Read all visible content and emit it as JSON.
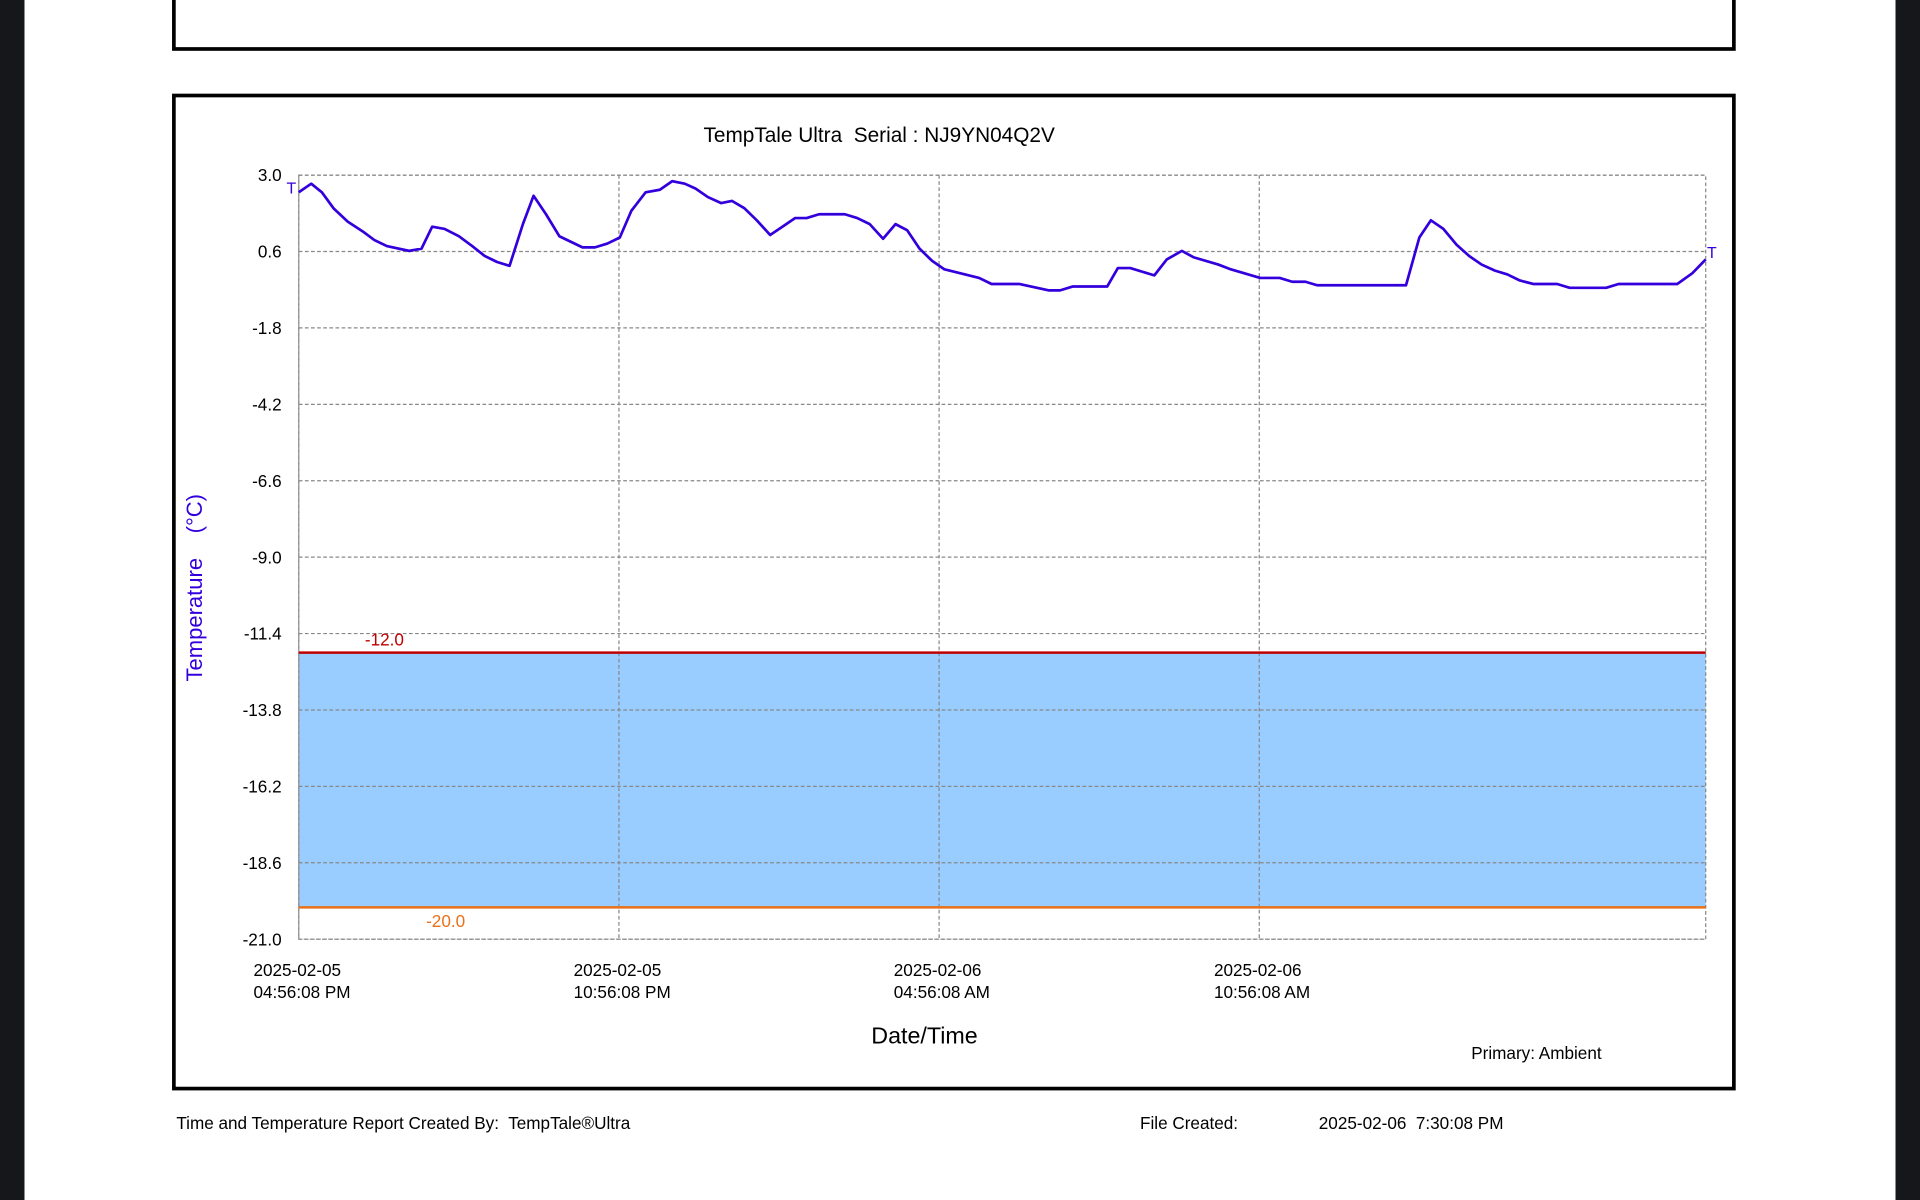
{
  "chart_data": {
    "type": "line",
    "title": "TempTale Ultra  Serial : NJ9YN04Q2V",
    "y_label": "Temperature    (°C)",
    "x_label": "Date/Time",
    "x": [
      "2025-02-05T16:56:08",
      "2025-02-05T17:10:08",
      "2025-02-05T17:22:08",
      "2025-02-05T17:35:08",
      "2025-02-05T17:51:08",
      "2025-02-05T18:08:08",
      "2025-02-05T18:21:08",
      "2025-02-05T18:35:08",
      "2025-02-05T19:00:08",
      "2025-02-05T19:14:08",
      "2025-02-05T19:26:08",
      "2025-02-05T19:40:08",
      "2025-02-05T19:56:08",
      "2025-02-05T20:11:08",
      "2025-02-05T20:25:08",
      "2025-02-05T20:39:08",
      "2025-02-05T20:53:08",
      "2025-02-05T21:08:08",
      "2025-02-05T21:20:08",
      "2025-02-05T21:34:08",
      "2025-02-05T21:49:08",
      "2025-02-05T22:15:08",
      "2025-02-05T22:29:08",
      "2025-02-05T22:43:08",
      "2025-02-05T22:57:08",
      "2025-02-05T23:10:08",
      "2025-02-05T23:26:08",
      "2025-02-05T23:42:08",
      "2025-02-05T23:56:08",
      "2025-02-06T00:10:08",
      "2025-02-06T00:22:08",
      "2025-02-06T00:36:08",
      "2025-02-06T00:51:08",
      "2025-02-06T01:03:08",
      "2025-02-06T01:17:08",
      "2025-02-06T01:31:08",
      "2025-02-06T01:46:08",
      "2025-02-06T02:00:08",
      "2025-02-06T02:14:08",
      "2025-02-06T02:27:08",
      "2025-02-06T02:41:08",
      "2025-02-06T03:10:08",
      "2025-02-06T03:24:08",
      "2025-02-06T03:38:08",
      "2025-02-06T03:53:08",
      "2025-02-06T04:07:08",
      "2025-02-06T04:20:08",
      "2025-02-06T04:34:08",
      "2025-02-06T04:48:08",
      "2025-02-06T05:02:08",
      "2025-02-06T05:41:08",
      "2025-02-06T05:55:08",
      "2025-02-06T06:26:08",
      "2025-02-06T06:59:08",
      "2025-02-06T07:12:08",
      "2025-02-06T07:26:08",
      "2025-02-06T08:05:08",
      "2025-02-06T08:17:08",
      "2025-02-06T08:31:08",
      "2025-02-06T08:58:08",
      "2025-02-06T09:12:08",
      "2025-02-06T09:29:08",
      "2025-02-06T09:42:08",
      "2025-02-06T10:10:08",
      "2025-02-06T10:24:08",
      "2025-02-06T10:57:08",
      "2025-02-06T11:19:08",
      "2025-02-06T11:33:08",
      "2025-02-06T11:48:08",
      "2025-02-06T12:01:08",
      "2025-02-06T13:41:08",
      "2025-02-06T13:56:08",
      "2025-02-06T14:09:08",
      "2025-02-06T14:23:08",
      "2025-02-06T14:38:08",
      "2025-02-06T14:52:08",
      "2025-02-06T15:06:08",
      "2025-02-06T15:21:08",
      "2025-02-06T15:35:08",
      "2025-02-06T15:49:08",
      "2025-02-06T16:04:08",
      "2025-02-06T16:31:08",
      "2025-02-06T16:45:08",
      "2025-02-06T17:26:08",
      "2025-02-06T17:40:08",
      "2025-02-06T18:46:08",
      "2025-02-06T19:03:08",
      "2025-02-06T19:18:08"
    ],
    "series": [
      {
        "name": "Primary: Ambient",
        "color": "#3300dd",
        "values": [
          2.46,
          2.73,
          2.46,
          1.96,
          1.54,
          1.23,
          0.96,
          0.77,
          0.62,
          0.69,
          1.38,
          1.31,
          1.08,
          0.77,
          0.46,
          0.27,
          0.15,
          1.46,
          2.35,
          1.77,
          1.08,
          0.73,
          0.73,
          0.85,
          1.04,
          1.88,
          2.46,
          2.54,
          2.81,
          2.73,
          2.58,
          2.31,
          2.12,
          2.19,
          1.96,
          1.58,
          1.12,
          1.38,
          1.65,
          1.65,
          1.77,
          1.77,
          1.65,
          1.46,
          1.0,
          1.46,
          1.27,
          0.69,
          0.31,
          0.04,
          -0.23,
          -0.42,
          -0.42,
          -0.62,
          -0.62,
          -0.5,
          -0.5,
          0.08,
          0.08,
          -0.15,
          0.35,
          0.62,
          0.42,
          0.19,
          0.04,
          -0.23,
          -0.23,
          -0.35,
          -0.35,
          -0.46,
          -0.46,
          1.04,
          1.58,
          1.31,
          0.81,
          0.46,
          0.19,
          0.0,
          -0.12,
          -0.31,
          -0.42,
          -0.42,
          -0.54,
          -0.54,
          -0.42,
          -0.42,
          -0.08,
          0.35
        ]
      }
    ],
    "markers": [
      "T",
      "T"
    ],
    "xlim": [
      "2025-02-05T16:56:08",
      "2025-02-06T19:18:08"
    ],
    "xticks": [
      {
        "value": "2025-02-05T16:56:08",
        "label": [
          "2025-02-05",
          "04:56:08 PM"
        ]
      },
      {
        "value": "2025-02-05T22:56:08",
        "label": [
          "2025-02-05",
          "10:56:08 PM"
        ]
      },
      {
        "value": "2025-02-06T04:56:08",
        "label": [
          "2025-02-06",
          "04:56:08 AM"
        ]
      },
      {
        "value": "2025-02-06T10:56:08",
        "label": [
          "2025-02-06",
          "10:56:08 AM"
        ]
      }
    ],
    "ylim": [
      -21,
      3
    ],
    "yticks": [
      {
        "value": 3,
        "label": "3.0"
      },
      0.6,
      -1.8,
      -4.2,
      -6.6,
      {
        "value": -9,
        "label": "-9.0"
      },
      -11.4,
      -13.8,
      -16.2,
      -18.6,
      {
        "value": -21,
        "label": "-21.0"
      }
    ],
    "grid": true,
    "limits": {
      "values": [
        -12,
        -20
      ],
      "value_labels": [
        "-12.0",
        "-20.0"
      ],
      "colors": [
        "#c00000",
        "#e8711a"
      ],
      "band_color": "#99ccff"
    }
  },
  "footer": {
    "created_by": "Time and Temperature Report Created By:  TempTale®Ultra",
    "file_created_label": "File Created:",
    "file_created": "2025-02-06  7:30:08 PM"
  }
}
